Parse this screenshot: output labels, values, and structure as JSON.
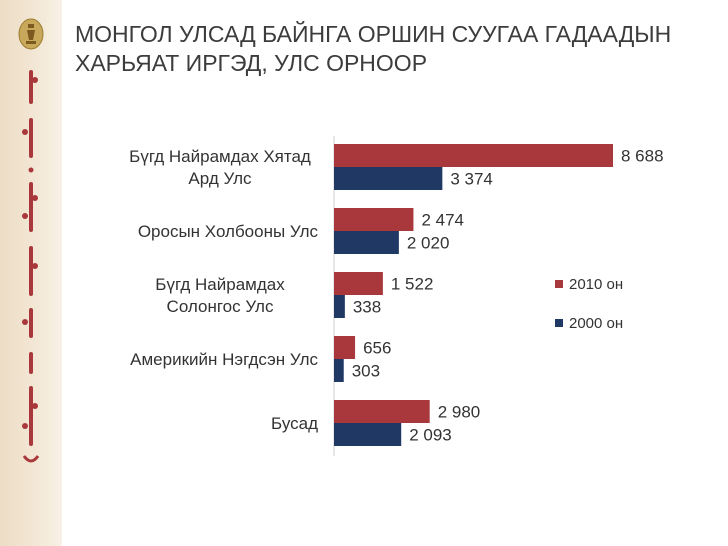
{
  "slide": {
    "title_line1": "МОНГОЛ УЛСАД БАЙНГА ОРШИН СУУГАА ГАДААДЫН",
    "title_line2": "ХАРЬЯАТ ИРГЭД, УЛС ОРНООР"
  },
  "decor": {
    "emblem_icon": "mongolia-state-emblem-icon",
    "script_icon": "mongolian-script-vertical-icon"
  },
  "colors": {
    "series_2010": "#a8383b",
    "series_2000": "#1f3864",
    "sidebar": "#f1e4d1"
  },
  "chart_data": {
    "type": "bar",
    "orientation": "horizontal",
    "categories": [
      [
        "Бүгд Найрамдах Хятад",
        "Ард Улс"
      ],
      [
        "Оросын Холбооны Улс"
      ],
      [
        "Бүгд Найрамдах",
        "Солонгос Улс"
      ],
      [
        "Америкийн Нэгдсэн Улс"
      ],
      [
        "Бусад"
      ]
    ],
    "series": [
      {
        "name": "2010 он",
        "values": [
          8688,
          2474,
          1522,
          656,
          2980
        ],
        "labels": [
          "8 688",
          "2 474",
          "1 522",
          "656",
          "2 980"
        ]
      },
      {
        "name": "2000 он",
        "values": [
          3374,
          2020,
          338,
          303,
          2093
        ],
        "labels": [
          "3 374",
          "2 020",
          "338",
          "303",
          "2 093"
        ]
      }
    ],
    "xlim": [
      0,
      8688
    ],
    "grid": false,
    "legend": "right"
  }
}
